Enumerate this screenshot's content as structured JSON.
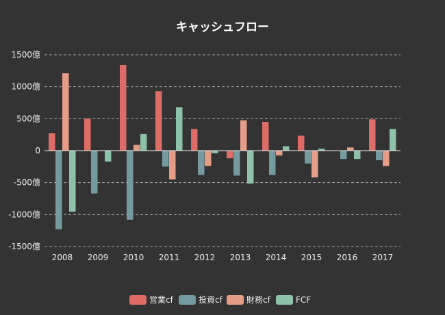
{
  "chart_data": {
    "type": "bar",
    "title": "キャッシュフロー",
    "categories": [
      "2008",
      "2009",
      "2010",
      "2011",
      "2012",
      "2013",
      "2014",
      "2015",
      "2016",
      "2017"
    ],
    "y_ticks": [
      1500,
      1000,
      500,
      0,
      -500,
      -1000,
      -1500
    ],
    "y_tick_labels": [
      "1500億",
      "1000億",
      "500億",
      "0",
      "-500億",
      "-1000億",
      "-1500億"
    ],
    "ylim": [
      -1500,
      1500
    ],
    "grid": true,
    "legend_position": "bottom",
    "series": [
      {
        "name": "営業cf",
        "color": "#dd6b66",
        "values": [
          275,
          500,
          1340,
          930,
          340,
          -120,
          450,
          235,
          0,
          490
        ]
      },
      {
        "name": "投資cf",
        "color": "#759aa0",
        "values": [
          -1230,
          -670,
          -1080,
          -250,
          -380,
          -390,
          -380,
          -200,
          -130,
          -150
        ]
      },
      {
        "name": "財務cf",
        "color": "#e69d87",
        "values": [
          1210,
          0,
          90,
          -450,
          -240,
          475,
          -75,
          -420,
          50,
          -240
        ]
      },
      {
        "name": "FCF",
        "color": "#8dc1a9",
        "values": [
          -955,
          -170,
          260,
          680,
          -40,
          -515,
          70,
          30,
          -130,
          340
        ]
      }
    ]
  }
}
